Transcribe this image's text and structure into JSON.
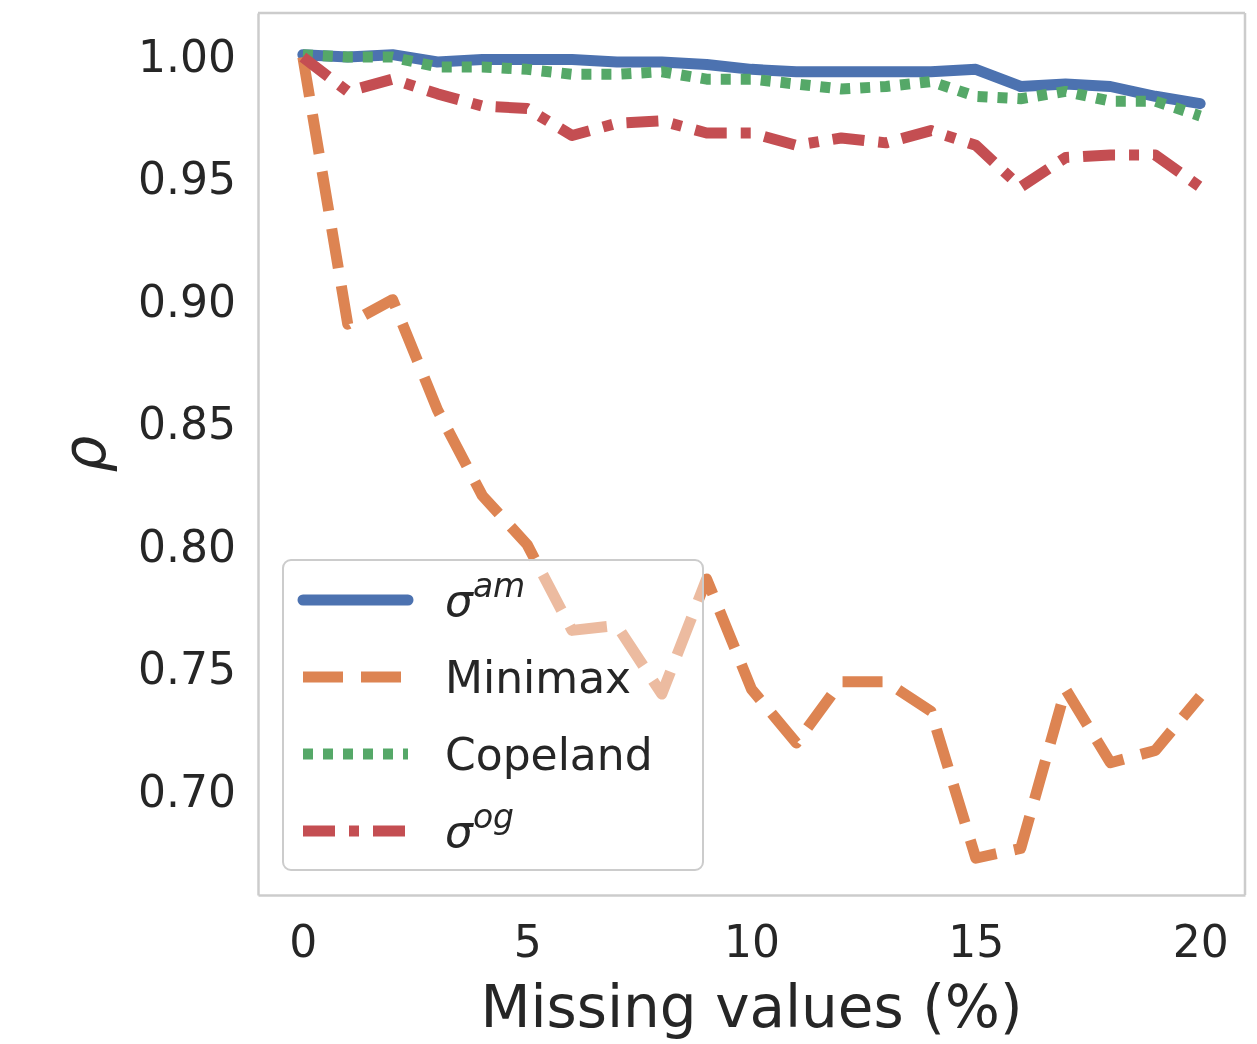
{
  "chart_data": {
    "type": "line",
    "xlabel": "Missing values (%)",
    "ylabel": "ρ",
    "x": [
      0,
      1,
      2,
      3,
      4,
      5,
      6,
      7,
      8,
      9,
      10,
      11,
      12,
      13,
      14,
      15,
      16,
      17,
      18,
      19,
      20
    ],
    "xlim": [
      -1,
      21
    ],
    "xticks": [
      0,
      5,
      10,
      15,
      20
    ],
    "ylim": [
      0.658,
      1.018
    ],
    "yticks": [
      {
        "value": 0.7,
        "label": "0.70"
      },
      {
        "value": 0.75,
        "label": "0.75"
      },
      {
        "value": 0.8,
        "label": "0.80"
      },
      {
        "value": 0.85,
        "label": "0.85"
      },
      {
        "value": 0.9,
        "label": "0.90"
      },
      {
        "value": 0.95,
        "label": "0.95"
      },
      {
        "value": 1.0,
        "label": "1.00"
      }
    ],
    "grid": false,
    "legend": "bottom left",
    "marker": "none",
    "series": [
      {
        "name": "σ$^{am}$",
        "color": "#4c72b0",
        "line_style": "solid",
        "values": [
          1.001,
          1.0,
          1.001,
          0.998,
          0.999,
          0.999,
          0.999,
          0.998,
          0.998,
          0.997,
          0.995,
          0.994,
          0.994,
          0.994,
          0.994,
          0.995,
          0.988,
          0.989,
          0.988,
          0.984,
          0.981
        ]
      },
      {
        "name": "Minimax",
        "color": "#dd8452",
        "line_style": "dashed",
        "values": [
          1.0,
          0.891,
          0.901,
          0.856,
          0.821,
          0.801,
          0.766,
          0.768,
          0.74,
          0.787,
          0.742,
          0.72,
          0.745,
          0.745,
          0.733,
          0.673,
          0.677,
          0.742,
          0.712,
          0.717,
          0.739
        ]
      },
      {
        "name": "Copeland",
        "color": "#55a868",
        "line_style": "dotted",
        "values": [
          1.001,
          1.0,
          1.0,
          0.996,
          0.996,
          0.995,
          0.993,
          0.993,
          0.994,
          0.991,
          0.991,
          0.989,
          0.987,
          0.988,
          0.99,
          0.984,
          0.983,
          0.986,
          0.982,
          0.982,
          0.976
        ]
      },
      {
        "name": "σ$^{og}$",
        "color": "#c44e52",
        "line_style": "dashdot",
        "values": [
          1.0,
          0.986,
          0.991,
          0.985,
          0.98,
          0.979,
          0.968,
          0.973,
          0.974,
          0.969,
          0.969,
          0.964,
          0.967,
          0.965,
          0.97,
          0.964,
          0.947,
          0.959,
          0.96,
          0.96,
          0.947
        ]
      }
    ]
  }
}
